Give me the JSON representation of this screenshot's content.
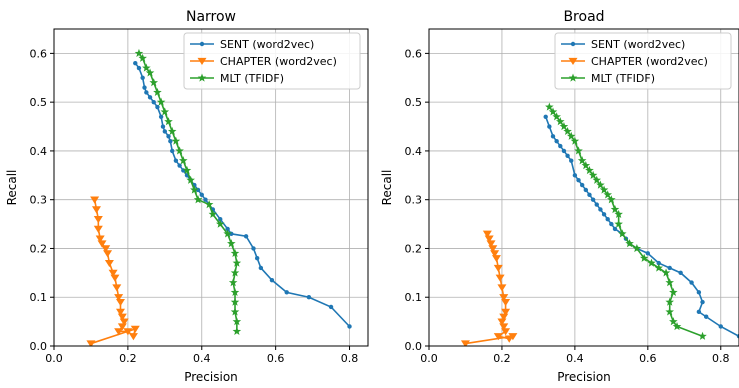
{
  "chart_data": [
    {
      "type": "line",
      "title": "Narrow",
      "xlabel": "Precision",
      "ylabel": "Recall",
      "xlim": [
        0.0,
        0.85
      ],
      "ylim": [
        0.0,
        0.65
      ],
      "xticks": [
        "0.0",
        "0.2",
        "0.4",
        "0.6",
        "0.8"
      ],
      "yticks": [
        "0.0",
        "0.1",
        "0.2",
        "0.3",
        "0.4",
        "0.5",
        "0.6"
      ],
      "grid": true,
      "legend_position": "top-right",
      "series": [
        {
          "name": "SENT (word2vec)",
          "color": "#1f77b4",
          "marker": "circle",
          "points": [
            [
              0.22,
              0.58
            ],
            [
              0.23,
              0.57
            ],
            [
              0.24,
              0.55
            ],
            [
              0.245,
              0.53
            ],
            [
              0.25,
              0.52
            ],
            [
              0.26,
              0.51
            ],
            [
              0.27,
              0.5
            ],
            [
              0.28,
              0.49
            ],
            [
              0.29,
              0.47
            ],
            [
              0.295,
              0.45
            ],
            [
              0.3,
              0.44
            ],
            [
              0.31,
              0.43
            ],
            [
              0.315,
              0.42
            ],
            [
              0.32,
              0.4
            ],
            [
              0.33,
              0.38
            ],
            [
              0.34,
              0.37
            ],
            [
              0.35,
              0.36
            ],
            [
              0.36,
              0.35
            ],
            [
              0.37,
              0.34
            ],
            [
              0.38,
              0.33
            ],
            [
              0.39,
              0.32
            ],
            [
              0.4,
              0.31
            ],
            [
              0.41,
              0.3
            ],
            [
              0.43,
              0.28
            ],
            [
              0.45,
              0.26
            ],
            [
              0.47,
              0.24
            ],
            [
              0.48,
              0.23
            ],
            [
              0.52,
              0.225
            ],
            [
              0.54,
              0.2
            ],
            [
              0.55,
              0.18
            ],
            [
              0.56,
              0.16
            ],
            [
              0.59,
              0.135
            ],
            [
              0.63,
              0.11
            ],
            [
              0.69,
              0.1
            ],
            [
              0.75,
              0.08
            ],
            [
              0.8,
              0.04
            ]
          ]
        },
        {
          "name": "CHAPTER (word2vec)",
          "color": "#ff7f0e",
          "marker": "triangle-down",
          "points": [
            [
              0.11,
              0.3
            ],
            [
              0.115,
              0.28
            ],
            [
              0.12,
              0.26
            ],
            [
              0.12,
              0.24
            ],
            [
              0.125,
              0.22
            ],
            [
              0.13,
              0.21
            ],
            [
              0.14,
              0.2
            ],
            [
              0.145,
              0.19
            ],
            [
              0.15,
              0.17
            ],
            [
              0.16,
              0.15
            ],
            [
              0.165,
              0.14
            ],
            [
              0.17,
              0.12
            ],
            [
              0.175,
              0.1
            ],
            [
              0.18,
              0.09
            ],
            [
              0.18,
              0.07
            ],
            [
              0.185,
              0.06
            ],
            [
              0.19,
              0.05
            ],
            [
              0.185,
              0.04
            ],
            [
              0.175,
              0.03
            ],
            [
              0.2,
              0.03
            ],
            [
              0.215,
              0.02
            ],
            [
              0.22,
              0.035
            ],
            [
              0.1,
              0.005
            ]
          ]
        },
        {
          "name": "MLT (TFIDF)",
          "color": "#2ca02c",
          "marker": "star",
          "points": [
            [
              0.23,
              0.6
            ],
            [
              0.24,
              0.59
            ],
            [
              0.25,
              0.57
            ],
            [
              0.26,
              0.56
            ],
            [
              0.27,
              0.54
            ],
            [
              0.28,
              0.52
            ],
            [
              0.29,
              0.5
            ],
            [
              0.3,
              0.48
            ],
            [
              0.31,
              0.46
            ],
            [
              0.32,
              0.44
            ],
            [
              0.33,
              0.42
            ],
            [
              0.34,
              0.4
            ],
            [
              0.35,
              0.38
            ],
            [
              0.36,
              0.36
            ],
            [
              0.37,
              0.34
            ],
            [
              0.38,
              0.32
            ],
            [
              0.39,
              0.3
            ],
            [
              0.42,
              0.29
            ],
            [
              0.43,
              0.27
            ],
            [
              0.45,
              0.25
            ],
            [
              0.47,
              0.23
            ],
            [
              0.48,
              0.21
            ],
            [
              0.49,
              0.19
            ],
            [
              0.495,
              0.17
            ],
            [
              0.49,
              0.15
            ],
            [
              0.485,
              0.13
            ],
            [
              0.49,
              0.11
            ],
            [
              0.49,
              0.09
            ],
            [
              0.49,
              0.07
            ],
            [
              0.495,
              0.05
            ],
            [
              0.495,
              0.03
            ]
          ]
        }
      ]
    },
    {
      "type": "line",
      "title": "Broad",
      "xlabel": "Precision",
      "ylabel": "Recall",
      "xlim": [
        0.0,
        0.85
      ],
      "ylim": [
        0.0,
        0.65
      ],
      "xticks": [
        "0.0",
        "0.2",
        "0.4",
        "0.6",
        "0.8"
      ],
      "yticks": [
        "0.0",
        "0.1",
        "0.2",
        "0.3",
        "0.4",
        "0.5",
        "0.6"
      ],
      "grid": true,
      "legend_position": "top-right",
      "series": [
        {
          "name": "SENT (word2vec)",
          "color": "#1f77b4",
          "marker": "circle",
          "points": [
            [
              0.32,
              0.47
            ],
            [
              0.33,
              0.45
            ],
            [
              0.34,
              0.43
            ],
            [
              0.35,
              0.42
            ],
            [
              0.36,
              0.41
            ],
            [
              0.37,
              0.4
            ],
            [
              0.38,
              0.39
            ],
            [
              0.39,
              0.38
            ],
            [
              0.4,
              0.35
            ],
            [
              0.41,
              0.34
            ],
            [
              0.42,
              0.33
            ],
            [
              0.43,
              0.32
            ],
            [
              0.44,
              0.31
            ],
            [
              0.45,
              0.3
            ],
            [
              0.46,
              0.29
            ],
            [
              0.47,
              0.28
            ],
            [
              0.48,
              0.27
            ],
            [
              0.49,
              0.26
            ],
            [
              0.5,
              0.25
            ],
            [
              0.51,
              0.24
            ],
            [
              0.53,
              0.23
            ],
            [
              0.54,
              0.22
            ],
            [
              0.55,
              0.21
            ],
            [
              0.57,
              0.2
            ],
            [
              0.6,
              0.19
            ],
            [
              0.63,
              0.17
            ],
            [
              0.66,
              0.16
            ],
            [
              0.69,
              0.15
            ],
            [
              0.72,
              0.13
            ],
            [
              0.74,
              0.11
            ],
            [
              0.75,
              0.09
            ],
            [
              0.74,
              0.07
            ],
            [
              0.76,
              0.06
            ],
            [
              0.8,
              0.04
            ],
            [
              0.85,
              0.02
            ]
          ]
        },
        {
          "name": "CHAPTER (word2vec)",
          "color": "#ff7f0e",
          "marker": "triangle-down",
          "points": [
            [
              0.16,
              0.23
            ],
            [
              0.165,
              0.22
            ],
            [
              0.17,
              0.21
            ],
            [
              0.175,
              0.2
            ],
            [
              0.18,
              0.19
            ],
            [
              0.185,
              0.18
            ],
            [
              0.19,
              0.16
            ],
            [
              0.195,
              0.14
            ],
            [
              0.2,
              0.12
            ],
            [
              0.205,
              0.1
            ],
            [
              0.21,
              0.09
            ],
            [
              0.21,
              0.07
            ],
            [
              0.205,
              0.06
            ],
            [
              0.2,
              0.05
            ],
            [
              0.205,
              0.04
            ],
            [
              0.21,
              0.03
            ],
            [
              0.19,
              0.02
            ],
            [
              0.22,
              0.015
            ],
            [
              0.23,
              0.02
            ],
            [
              0.1,
              0.005
            ]
          ]
        },
        {
          "name": "MLT (TFIDF)",
          "color": "#2ca02c",
          "marker": "star",
          "points": [
            [
              0.33,
              0.49
            ],
            [
              0.34,
              0.48
            ],
            [
              0.35,
              0.47
            ],
            [
              0.36,
              0.46
            ],
            [
              0.37,
              0.45
            ],
            [
              0.38,
              0.44
            ],
            [
              0.39,
              0.43
            ],
            [
              0.4,
              0.42
            ],
            [
              0.41,
              0.4
            ],
            [
              0.42,
              0.38
            ],
            [
              0.43,
              0.37
            ],
            [
              0.44,
              0.36
            ],
            [
              0.45,
              0.35
            ],
            [
              0.46,
              0.34
            ],
            [
              0.47,
              0.33
            ],
            [
              0.48,
              0.32
            ],
            [
              0.49,
              0.31
            ],
            [
              0.5,
              0.3
            ],
            [
              0.51,
              0.28
            ],
            [
              0.52,
              0.27
            ],
            [
              0.52,
              0.25
            ],
            [
              0.53,
              0.23
            ],
            [
              0.55,
              0.21
            ],
            [
              0.57,
              0.2
            ],
            [
              0.59,
              0.18
            ],
            [
              0.61,
              0.17
            ],
            [
              0.63,
              0.16
            ],
            [
              0.65,
              0.15
            ],
            [
              0.66,
              0.13
            ],
            [
              0.67,
              0.11
            ],
            [
              0.66,
              0.09
            ],
            [
              0.66,
              0.07
            ],
            [
              0.67,
              0.05
            ],
            [
              0.68,
              0.04
            ],
            [
              0.75,
              0.02
            ]
          ]
        }
      ]
    }
  ]
}
